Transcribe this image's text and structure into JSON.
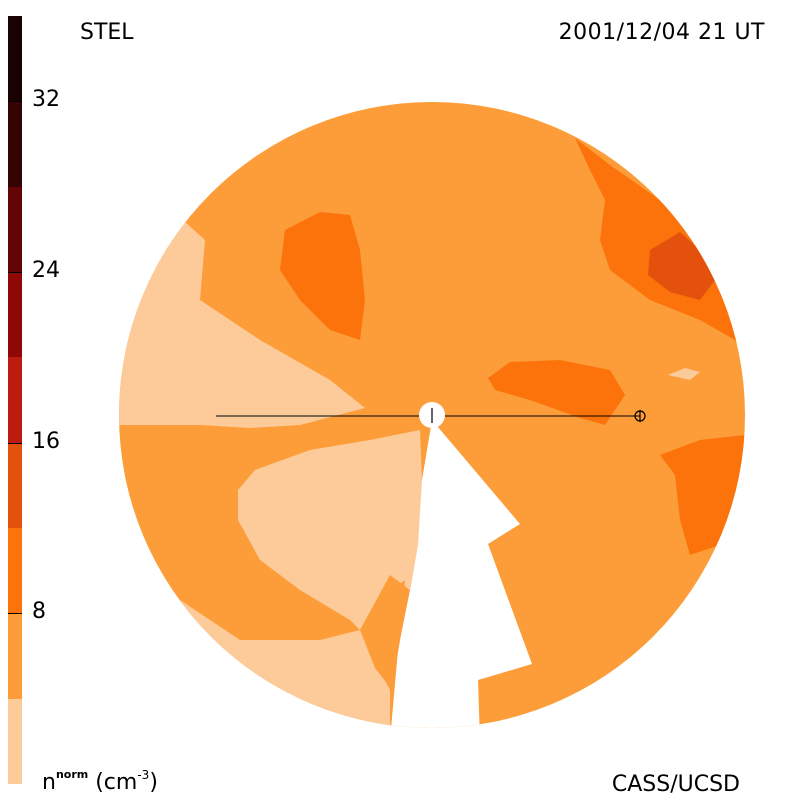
{
  "header": {
    "instrument": "STEL",
    "timestamp": "2001/12/04 21 UT"
  },
  "footer": {
    "credit": "CASS/UCSD",
    "unit_symbol": "n",
    "unit_superscript": "norm",
    "unit_open": " (cm",
    "unit_exponent": "-3",
    "unit_close": ")"
  },
  "colorbar": {
    "ticks": [
      "32",
      "24",
      "16",
      "8"
    ],
    "tick_values": [
      32,
      24,
      16,
      8
    ],
    "range": [
      0,
      36
    ],
    "levels": [
      {
        "from": 0,
        "to": 4,
        "color": "#FDCB99"
      },
      {
        "from": 4,
        "to": 8,
        "color": "#FC9D3A"
      },
      {
        "from": 8,
        "to": 12,
        "color": "#FC720B"
      },
      {
        "from": 12,
        "to": 16,
        "color": "#E4510D"
      },
      {
        "from": 16,
        "to": 20,
        "color": "#BC1C10"
      },
      {
        "from": 20,
        "to": 24,
        "color": "#8E0808"
      },
      {
        "from": 24,
        "to": 28,
        "color": "#640505"
      },
      {
        "from": 28,
        "to": 32,
        "color": "#360303"
      },
      {
        "from": 32,
        "to": 36,
        "color": "#1A0202"
      }
    ]
  },
  "map": {
    "sun_marker": "sun",
    "earth_marker": "earth",
    "colors": {
      "pale": "#FDCB99",
      "light": "#FC9D3A",
      "mid": "#FC720B",
      "dark": "#E4510D",
      "gap": "#FFFFFF"
    }
  }
}
